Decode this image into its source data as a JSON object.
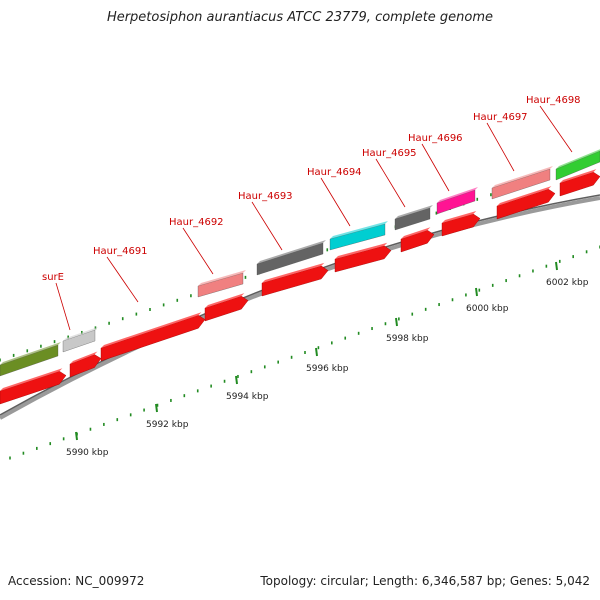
{
  "title": "Herpetosiphon aurantiacus ATCC 23779, complete genome",
  "footer": {
    "accession": "Accession: NC_009972",
    "summary": "Topology: circular; Length: 6,346,587 bp; Genes: 5,042"
  },
  "colors": {
    "cds": "#ee1111",
    "backbone": "#888888",
    "tick": "#228b22",
    "label": "#cc0000"
  },
  "gene_labels": [
    "surE",
    "Haur_4691",
    "Haur_4692",
    "Haur_4693",
    "Haur_4694",
    "Haur_4695",
    "Haur_4696",
    "Haur_4697",
    "Haur_4698"
  ],
  "kbp_labels": [
    "5990 kbp",
    "5992 kbp",
    "5994 kbp",
    "5996 kbp",
    "5998 kbp",
    "6000 kbp",
    "6002 kbp"
  ],
  "feature_colors": [
    "#6b8e23",
    "#c8c8c8",
    "#f08080",
    "#646464",
    "#00ced1",
    "#646464",
    "#ff1493",
    "#f08080",
    "#32cd32"
  ]
}
